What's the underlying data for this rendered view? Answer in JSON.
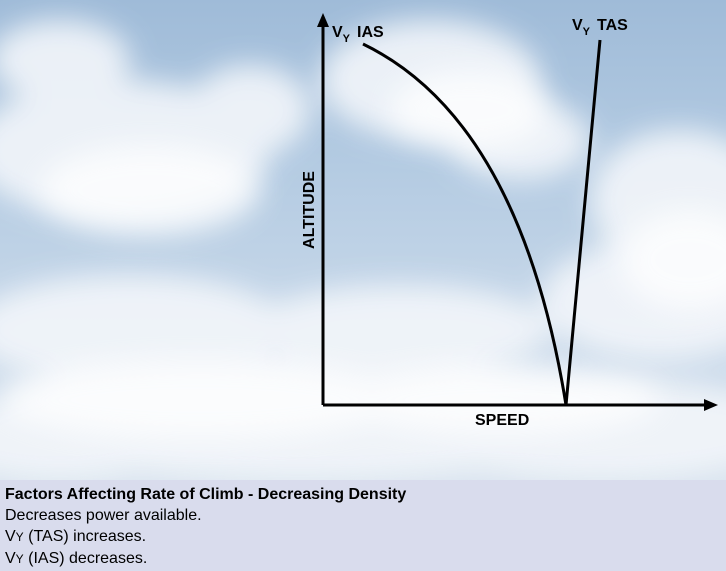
{
  "diagram": {
    "y_axis_label": "ALTITUDE",
    "x_axis_label": "SPEED",
    "curve_ias": {
      "label_main": "V",
      "label_sub": "Y",
      "label_suffix": "IAS"
    },
    "curve_tas": {
      "label_main": "V",
      "label_sub": "Y",
      "label_suffix": "TAS"
    },
    "colors": {
      "line": "#000000"
    }
  },
  "caption": {
    "title": "Factors Affecting Rate of Climb - Decreasing Density",
    "line1": "Decreases power available.",
    "line2_v": "V",
    "line2_y": "Y",
    "line2_rest": " (TAS) increases.",
    "line3_v": "V",
    "line3_y": "Y",
    "line3_rest": " (IAS) decreases.",
    "background": "#d9dced"
  }
}
